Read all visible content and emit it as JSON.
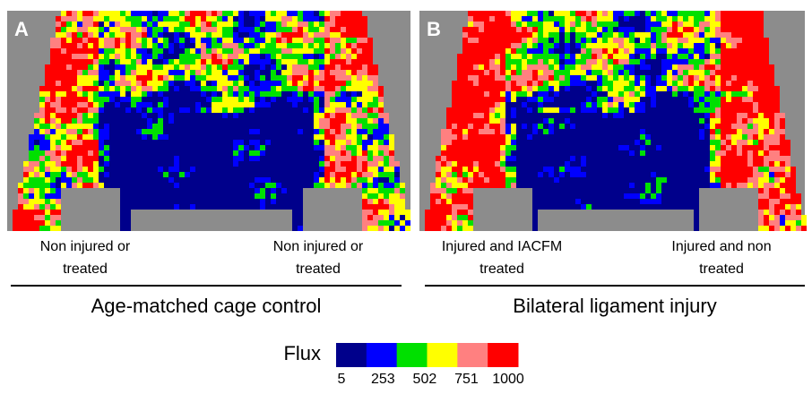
{
  "panels": [
    {
      "letter": "A",
      "left_label": [
        "Non injured or",
        "treated"
      ],
      "right_label": [
        "Non injured or",
        "treated"
      ],
      "group": "Age-matched cage control"
    },
    {
      "letter": "B",
      "left_label": [
        "Injured and IACFM",
        "treated"
      ],
      "right_label": [
        "Injured and non",
        "treated"
      ],
      "group": "Bilateral ligament injury"
    }
  ],
  "colorbar": {
    "label": "Flux",
    "colors": [
      "#00008b",
      "#0000ff",
      "#00e000",
      "#ffff00",
      "#ff8080",
      "#ff0000"
    ],
    "ticks": [
      5,
      253,
      502,
      751,
      1000
    ]
  }
}
